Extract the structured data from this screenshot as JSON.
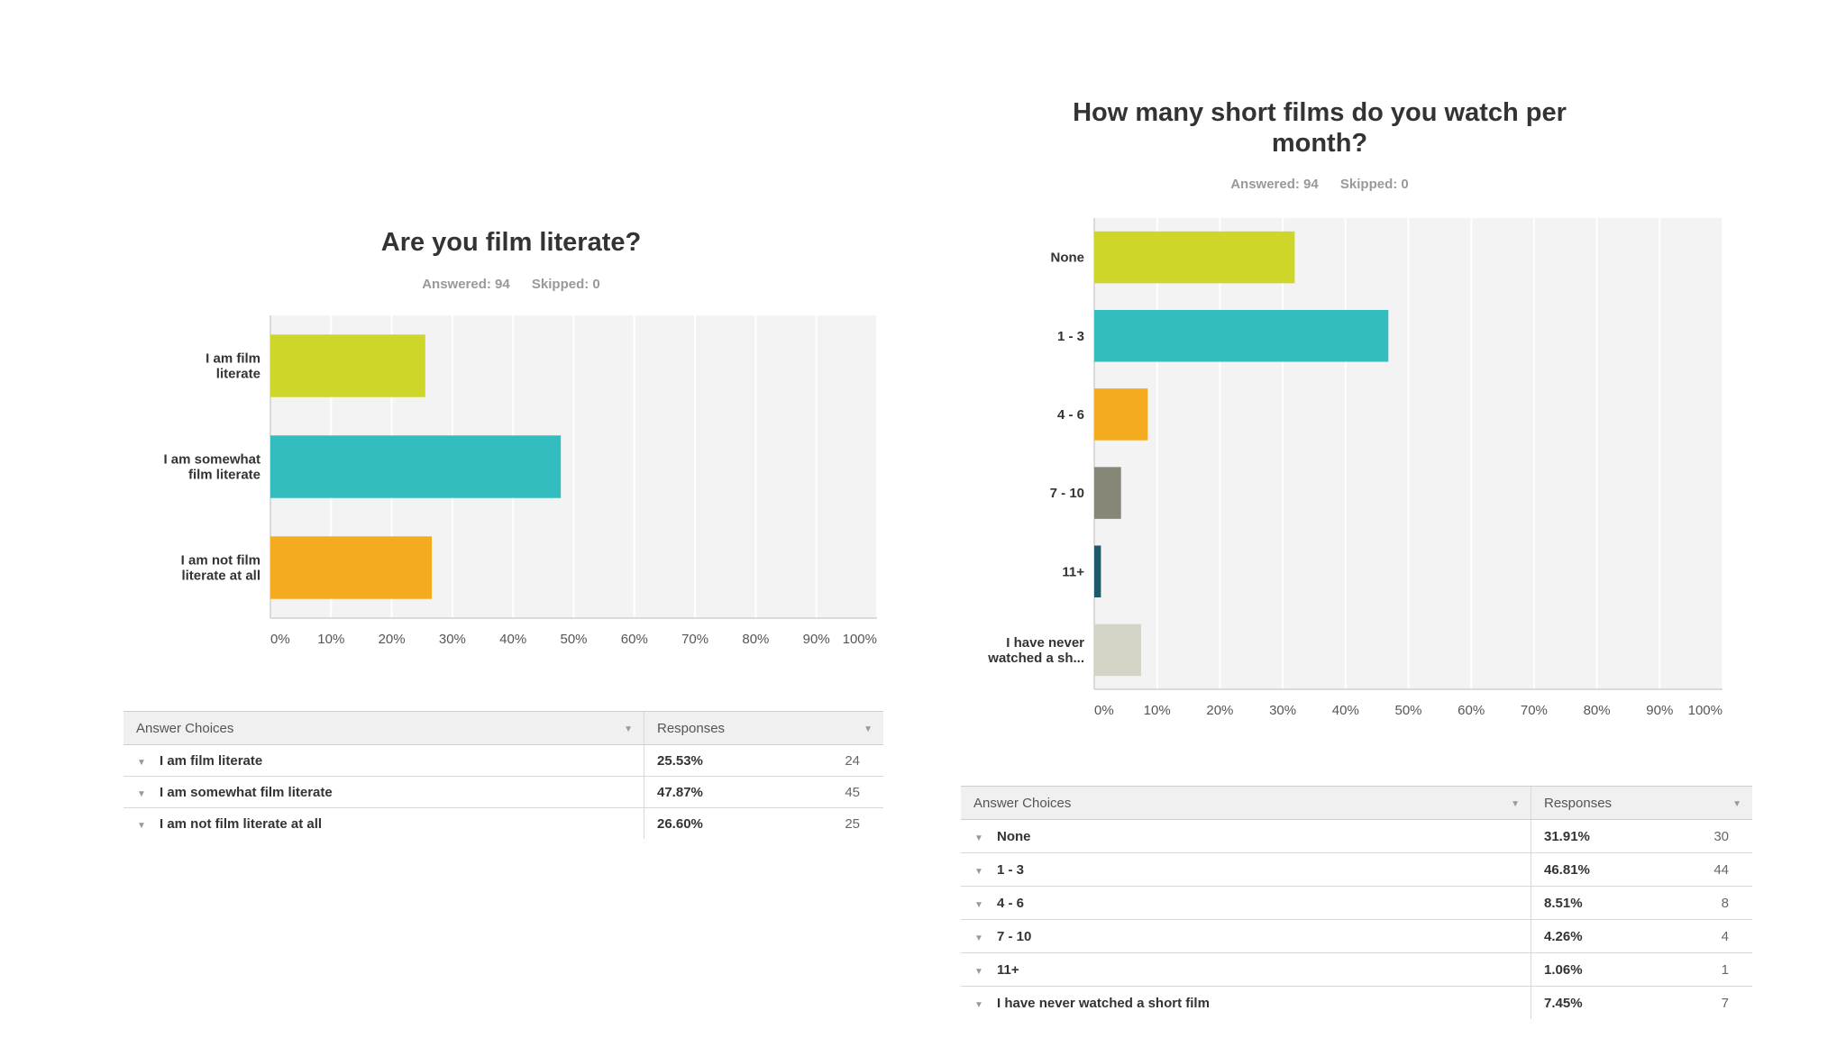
{
  "colors": [
    "#cfd62a",
    "#33bdbf",
    "#f5ab1f",
    "#878778",
    "#1f5a6b",
    "#d3d3c6"
  ],
  "left": {
    "title": "Are you film literate?",
    "answered": "Answered: 94",
    "skipped": "Skipped: 0",
    "table": {
      "col_choices": "Answer Choices",
      "col_responses": "Responses",
      "rows": [
        {
          "choice": "I am film literate",
          "pct": "25.53%",
          "count": "24"
        },
        {
          "choice": "I am somewhat film literate",
          "pct": "47.87%",
          "count": "45"
        },
        {
          "choice": "I am not film literate at all",
          "pct": "26.60%",
          "count": "25"
        }
      ]
    }
  },
  "right": {
    "title": "How many short films do you watch per month?",
    "answered": "Answered: 94",
    "skipped": "Skipped: 0",
    "table": {
      "col_choices": "Answer Choices",
      "col_responses": "Responses",
      "rows": [
        {
          "choice": "None",
          "pct": "31.91%",
          "count": "30"
        },
        {
          "choice": "1 - 3",
          "pct": "46.81%",
          "count": "44"
        },
        {
          "choice": "4 - 6",
          "pct": "8.51%",
          "count": "8"
        },
        {
          "choice": "7 - 10",
          "pct": "4.26%",
          "count": "4"
        },
        {
          "choice": "11+",
          "pct": "1.06%",
          "count": "1"
        },
        {
          "choice": "I have never watched a short film",
          "pct": "7.45%",
          "count": "7"
        }
      ]
    }
  },
  "chart_data": [
    {
      "type": "bar",
      "orientation": "horizontal",
      "title": "Are you film literate?",
      "categories": [
        [
          "I am film",
          "literate"
        ],
        [
          "I am somewhat",
          "film literate"
        ],
        [
          "I am not film",
          "literate at all"
        ]
      ],
      "values": [
        25.53,
        47.87,
        26.6
      ],
      "xlim": [
        0,
        100
      ],
      "xticks": [
        "0%",
        "10%",
        "20%",
        "30%",
        "40%",
        "50%",
        "60%",
        "70%",
        "80%",
        "90%",
        "100%"
      ],
      "grid": true
    },
    {
      "type": "bar",
      "orientation": "horizontal",
      "title": "How many short films do you watch per month?",
      "categories": [
        [
          "None"
        ],
        [
          "1 - 3"
        ],
        [
          "4 - 6"
        ],
        [
          "7 - 10"
        ],
        [
          "11+"
        ],
        [
          "I have never",
          "watched a sh..."
        ]
      ],
      "values": [
        31.91,
        46.81,
        8.51,
        4.26,
        1.06,
        7.45
      ],
      "xlim": [
        0,
        100
      ],
      "xticks": [
        "0%",
        "10%",
        "20%",
        "30%",
        "40%",
        "50%",
        "60%",
        "70%",
        "80%",
        "90%",
        "100%"
      ],
      "grid": true
    }
  ]
}
